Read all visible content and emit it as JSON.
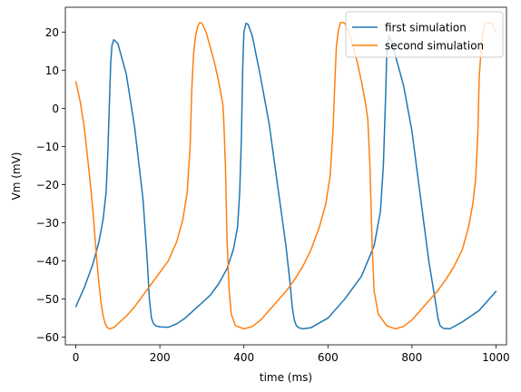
{
  "chart_data": {
    "type": "line",
    "title": "",
    "xlabel": "time (ms)",
    "ylabel": "Vm (mV)",
    "xlim": [
      -25,
      1025
    ],
    "ylim": [
      -62,
      26.5
    ],
    "xticks": [
      0,
      200,
      400,
      600,
      800,
      1000
    ],
    "yticks": [
      -60,
      -50,
      -40,
      -30,
      -20,
      -10,
      0,
      10,
      20
    ],
    "grid": false,
    "legend": "top-right",
    "series": [
      {
        "name": "first simulation",
        "color": "#1f77b4",
        "x": [
          0,
          20,
          40,
          55,
          65,
          72,
          76,
          80,
          83,
          86,
          90,
          100,
          120,
          140,
          160,
          170,
          175,
          180,
          185,
          190,
          200,
          220,
          240,
          260,
          280,
          300,
          320,
          340,
          360,
          375,
          385,
          390,
          394,
          397,
          400,
          405,
          410,
          420,
          440,
          460,
          480,
          500,
          510,
          515,
          520,
          525,
          530,
          540,
          560,
          600,
          640,
          680,
          710,
          725,
          732,
          737,
          740,
          745,
          750,
          760,
          780,
          800,
          820,
          840,
          855,
          862,
          867,
          875,
          890,
          920,
          960,
          1000
        ],
        "y": [
          -52,
          -47,
          -41,
          -35,
          -29,
          -22,
          -12,
          2,
          12,
          16.5,
          18,
          17,
          9,
          -5,
          -24,
          -40,
          -50,
          -55,
          -56.5,
          -57,
          -57.3,
          -57.4,
          -56.5,
          -55,
          -53,
          -51,
          -49,
          -46,
          -42,
          -37,
          -31,
          -22,
          -8,
          10,
          20,
          22.3,
          22,
          19,
          8,
          -4,
          -20,
          -36,
          -46,
          -52,
          -55.5,
          -57,
          -57.5,
          -57.8,
          -57.5,
          -55,
          -50,
          -44,
          -36,
          -27,
          -15,
          2,
          14,
          19,
          18,
          14,
          6,
          -6,
          -23,
          -40,
          -50,
          -55,
          -57,
          -57.7,
          -57.8,
          -56,
          -53,
          -48
        ]
      },
      {
        "name": "second simulation",
        "color": "#ff7f0e",
        "x": [
          0,
          10,
          20,
          30,
          40,
          50,
          55,
          60,
          65,
          70,
          75,
          80,
          90,
          100,
          120,
          140,
          160,
          180,
          200,
          220,
          240,
          255,
          265,
          272,
          276,
          280,
          285,
          290,
          295,
          300,
          310,
          320,
          330,
          340,
          350,
          352,
          356,
          360,
          365,
          370,
          380,
          400,
          420,
          440,
          460,
          480,
          500,
          520,
          540,
          560,
          580,
          595,
          605,
          612,
          617,
          620,
          625,
          630,
          635,
          640,
          650,
          660,
          670,
          680,
          690,
          695,
          700,
          705,
          710,
          720,
          740,
          760,
          780,
          800,
          820,
          840,
          860,
          880,
          900,
          920,
          935,
          945,
          952,
          957,
          960,
          965,
          970,
          975,
          980,
          990,
          1000
        ],
        "y": [
          7,
          2,
          -5,
          -15,
          -26,
          -40,
          -46,
          -51,
          -54.5,
          -56.5,
          -57.5,
          -57.8,
          -57.5,
          -56.5,
          -54.5,
          -52,
          -49,
          -46,
          -43,
          -40,
          -35,
          -29,
          -22,
          -10,
          5,
          14,
          19,
          21.5,
          22.5,
          22.3,
          20,
          16,
          12,
          7,
          1,
          -3,
          -15,
          -35,
          -48,
          -54,
          -57,
          -57.8,
          -57.2,
          -55.5,
          -53,
          -50.5,
          -48,
          -45,
          -41.5,
          -37,
          -31,
          -25,
          -18,
          -6,
          8,
          16,
          20.5,
          22.5,
          22.5,
          22.3,
          20,
          16,
          12,
          7,
          1,
          -3,
          -15,
          -35,
          -48,
          -54,
          -57,
          -57.8,
          -57.2,
          -55.5,
          -53,
          -50.5,
          -48,
          -45,
          -41.5,
          -37,
          -31,
          -25,
          -18,
          -6,
          8,
          16,
          20.5,
          22.5,
          22.5,
          22.3,
          20
        ]
      }
    ]
  }
}
